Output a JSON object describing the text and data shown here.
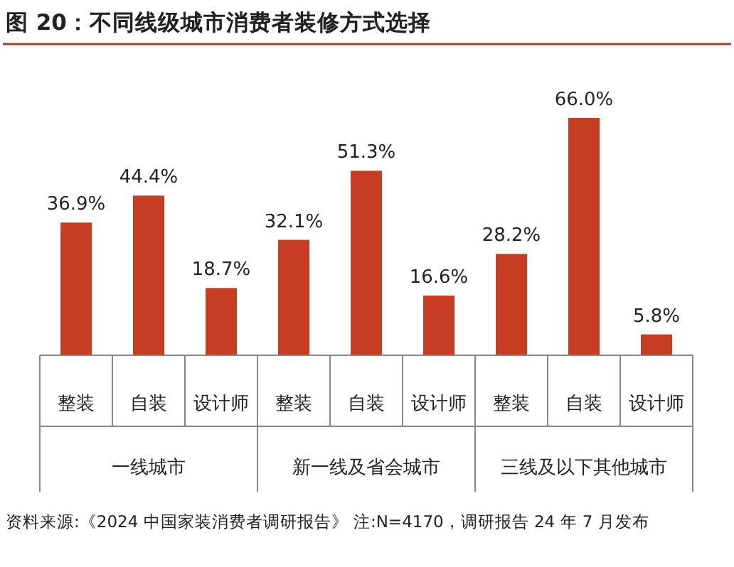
{
  "chart_data": {
    "type": "bar",
    "title": "图 20：不同线级城市消费者装修方式选择",
    "categories": [
      "整装",
      "自装",
      "设计师",
      "整装",
      "自装",
      "设计师",
      "整装",
      "自装",
      "设计师"
    ],
    "values": [
      36.9,
      44.4,
      18.7,
      32.1,
      51.3,
      16.6,
      28.2,
      66.0,
      5.8
    ],
    "value_labels": [
      "36.9%",
      "44.4%",
      "18.7%",
      "32.1%",
      "51.3%",
      "16.6%",
      "28.2%",
      "66.0%",
      "5.8%"
    ],
    "color": "#c63d23",
    "annotations": [
      "一线城市",
      "新一线及省会城市",
      "三线及以下其他城市",
      "资料来源:《2024 中国家装消费者调研报告》 注:N=4170，调研报告 24 年 7 月发布"
    ]
  }
}
